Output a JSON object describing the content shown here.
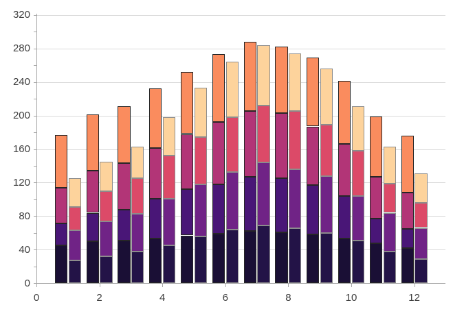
{
  "chart_data": {
    "type": "bar",
    "stacked": true,
    "orientation": "vertical",
    "title": "",
    "xlabel": "",
    "ylabel": "",
    "legend": "none",
    "grid": "horizontal-only",
    "background": "#ffffff",
    "categories": [
      1,
      2,
      3,
      4,
      5,
      6,
      7,
      8,
      9,
      10,
      11,
      12
    ],
    "xlim": [
      0,
      13
    ],
    "ylim": [
      0,
      320
    ],
    "x_ticks": {
      "values": [
        0,
        2,
        4,
        6,
        8,
        10,
        12
      ],
      "labels": [
        "0",
        "2",
        "4",
        "6",
        "8",
        "10",
        "12"
      ]
    },
    "y_ticks": {
      "major_step": 40,
      "minor_step": 20,
      "values": [
        0,
        40,
        80,
        120,
        160,
        200,
        240,
        280,
        320
      ],
      "labels": [
        "0",
        "40",
        "80",
        "120",
        "160",
        "200",
        "240",
        "280",
        "320"
      ]
    },
    "bars_per_category": 2,
    "left_bar": {
      "border_color": "#262626",
      "totals": [
        177,
        201,
        211,
        232,
        252,
        273,
        288,
        282,
        269,
        241,
        199,
        176
      ],
      "series": [
        {
          "name": "left-segment-1-dark-navy",
          "color": "#1a0f35",
          "values": [
            45,
            50,
            51,
            53,
            57,
            59,
            62,
            61,
            58,
            53,
            48,
            42
          ]
        },
        {
          "name": "left-segment-2-purple",
          "color": "#491677",
          "values": [
            26,
            34,
            37,
            48,
            55,
            59,
            65,
            64,
            59,
            51,
            29,
            23
          ]
        },
        {
          "name": "left-segment-3-magenta",
          "color": "#b23577",
          "values": [
            43,
            50,
            55,
            60,
            66,
            74,
            78,
            78,
            70,
            62,
            50,
            43
          ]
        },
        {
          "name": "left-segment-4-orange",
          "color": "#fa8c5e",
          "values": [
            63,
            67,
            68,
            71,
            74,
            81,
            83,
            79,
            82,
            75,
            72,
            68
          ]
        }
      ]
    },
    "right_bar": {
      "border_color": "#8c8c8c",
      "totals": [
        125,
        145,
        163,
        198,
        233,
        264,
        284,
        274,
        256,
        211,
        163,
        131
      ],
      "series": [
        {
          "name": "right-segment-1-navy",
          "color": "#231347",
          "values": [
            27,
            32,
            38,
            45,
            56,
            64,
            69,
            66,
            60,
            51,
            38,
            29
          ]
        },
        {
          "name": "right-segment-2-violet",
          "color": "#702386",
          "values": [
            36,
            42,
            45,
            56,
            62,
            69,
            75,
            70,
            68,
            53,
            46,
            37
          ]
        },
        {
          "name": "right-segment-3-crimson",
          "color": "#dc4a68",
          "values": [
            28,
            36,
            42,
            51,
            56,
            65,
            68,
            69,
            61,
            54,
            35,
            30
          ]
        },
        {
          "name": "right-segment-4-cream",
          "color": "#fdd39c",
          "values": [
            34,
            35,
            38,
            46,
            59,
            66,
            72,
            69,
            67,
            53,
            44,
            35
          ]
        }
      ]
    },
    "colors": {
      "gridline": "#d9d9d9",
      "axis_line": "#a6a6a6",
      "tick_mark": "#a6a6a6",
      "label_text": "#3d3d3d"
    }
  }
}
